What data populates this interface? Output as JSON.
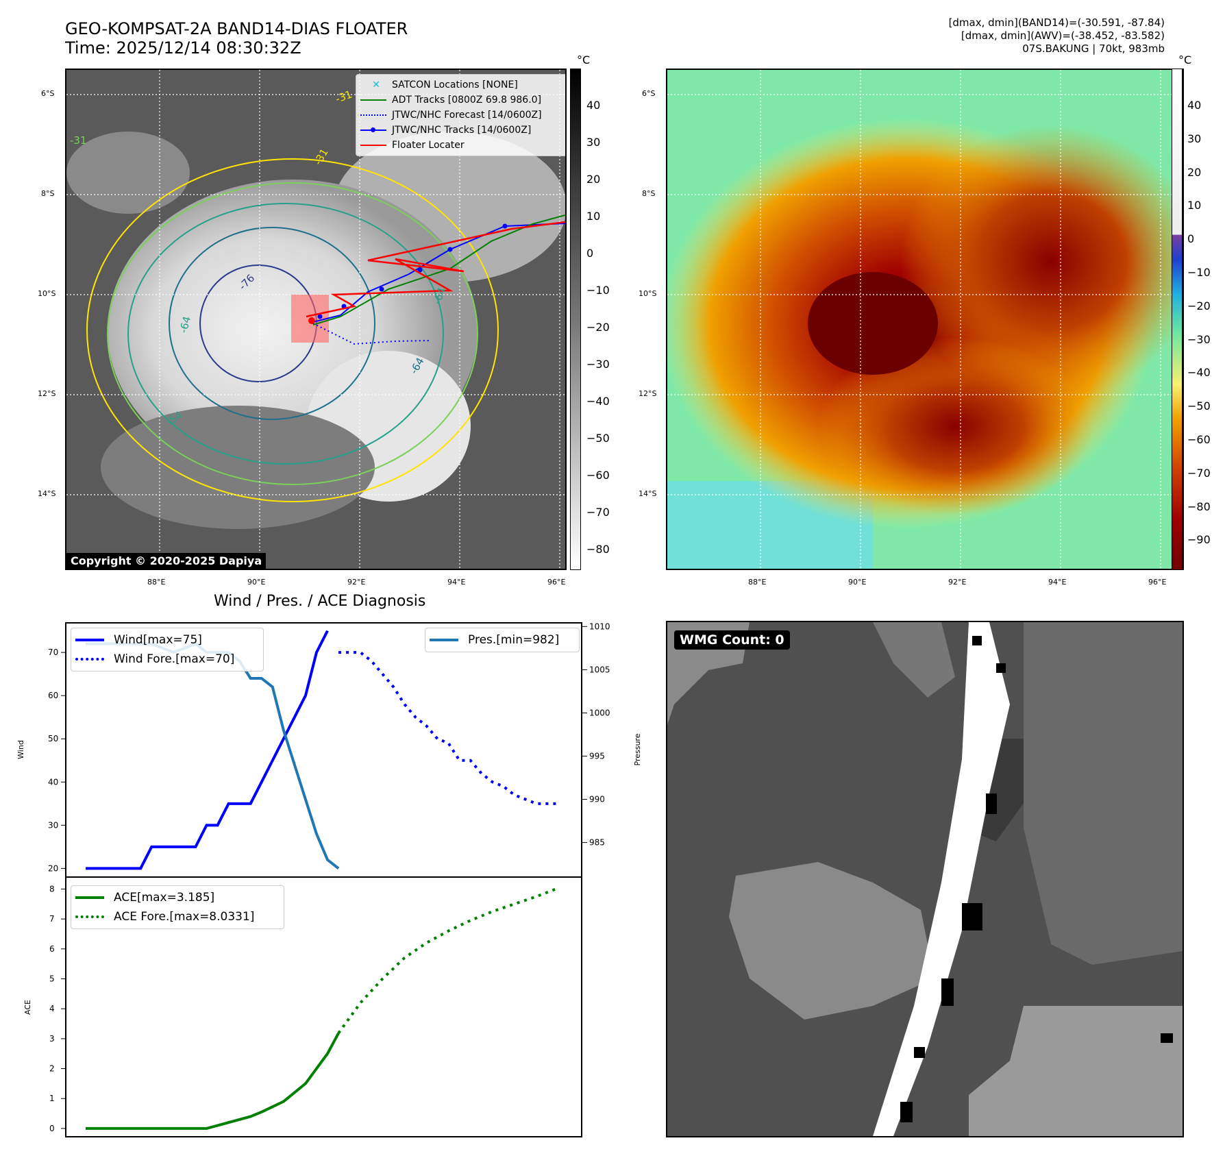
{
  "header": {
    "title_line1": "GEO-KOMPSAT-2A BAND14-DIAS FLOATER",
    "title_line2": "Time: 2025/12/14 08:30:32Z",
    "info_line1": "[dmax, dmin](BAND14)=(-30.591, -87.84)",
    "info_line2": "[dmax, dmin](AWV)=(-38.452, -83.582)",
    "info_line3": "07S.BAKUNG | 70kt, 983mb"
  },
  "map": {
    "lat_labels": [
      "6°S",
      "8°S",
      "10°S",
      "12°S",
      "14°S"
    ],
    "lon_labels": [
      "88°E",
      "90°E",
      "92°E",
      "94°E",
      "96°E"
    ],
    "copyright": "Copyright © 2020-2025 Dapiya",
    "contour_labels": [
      "-31",
      "-31",
      "-64",
      "-76",
      "-54",
      "-64",
      "-31",
      "-64"
    ],
    "legend": [
      {
        "label": "SATCON Locations [NONE]",
        "color": "#17becf",
        "style": "marker-x"
      },
      {
        "label": "ADT Tracks [0800Z 69.8 986.0]",
        "color": "#008000",
        "style": "solid"
      },
      {
        "label": "JTWC/NHC Forecast [14/0600Z]",
        "color": "#0000ff",
        "style": "dotted"
      },
      {
        "label": "JTWC/NHC Tracks [14/0600Z]",
        "color": "#0000ff",
        "style": "solid-marker"
      },
      {
        "label": "Floater Locater",
        "color": "#ff0000",
        "style": "solid"
      }
    ]
  },
  "colorbar_left": {
    "unit": "°C",
    "ticks": [
      "40",
      "30",
      "20",
      "10",
      "0",
      "−10",
      "−20",
      "−30",
      "−40",
      "−50",
      "−60",
      "−70",
      "−80"
    ]
  },
  "colorbar_right": {
    "unit": "°C",
    "ticks": [
      "40",
      "30",
      "20",
      "10",
      "0",
      "−10",
      "−20",
      "−30",
      "−40",
      "−50",
      "−60",
      "−70",
      "−80",
      "−90"
    ]
  },
  "diagnosis": {
    "title": "Wind / Pres. / ACE Diagnosis",
    "wmg_count": "WMG Count: 0"
  },
  "chart_data": [
    {
      "type": "line",
      "ylabel": "Wind",
      "y2label": "Pressure",
      "ylim": [
        18,
        77
      ],
      "y2lim": [
        981,
        1010.5
      ],
      "yticks": [
        20,
        30,
        40,
        50,
        60,
        70
      ],
      "y2ticks": [
        985,
        990,
        995,
        1000,
        1005,
        1010
      ],
      "legend_left": [
        "Wind[max=75]",
        "Wind Fore.[max=70]"
      ],
      "legend_right": [
        "Pres.[min=982]"
      ],
      "series": [
        {
          "name": "Wind[max=75]",
          "axis": "left",
          "color": "#0000ff",
          "style": "solid",
          "x": [
            0,
            1,
            2,
            3,
            4,
            5,
            6,
            7,
            8,
            9,
            10,
            11,
            12,
            13,
            14,
            15,
            16,
            17,
            18,
            19,
            20,
            21,
            22
          ],
          "values": [
            20,
            20,
            20,
            20,
            20,
            20,
            25,
            25,
            25,
            25,
            25,
            30,
            30,
            35,
            35,
            35,
            40,
            45,
            50,
            55,
            60,
            70,
            75
          ]
        },
        {
          "name": "Wind Fore.[max=70]",
          "axis": "left",
          "color": "#0000ff",
          "style": "dotted",
          "x": [
            23,
            24,
            25,
            26,
            27,
            28,
            29,
            30,
            31,
            32,
            33,
            34,
            35,
            36,
            37,
            38,
            39,
            40,
            41,
            42,
            43
          ],
          "values": [
            70,
            70,
            70,
            68,
            65,
            62,
            58,
            55,
            53,
            50,
            49,
            45,
            45,
            42,
            40,
            39,
            37,
            36,
            35,
            35,
            35
          ]
        },
        {
          "name": "Pres.[min=982]",
          "axis": "right",
          "color": "#1f77b4",
          "style": "solid",
          "x": [
            0,
            2,
            4,
            6,
            8,
            10,
            11,
            12,
            13,
            14,
            15,
            16,
            17,
            18,
            19,
            20,
            21,
            22,
            23
          ],
          "values": [
            1008,
            1008,
            1008,
            1008,
            1007,
            1008,
            1007,
            1007,
            1007,
            1006,
            1004,
            1004,
            1003,
            998,
            994,
            990,
            986,
            983,
            982
          ]
        }
      ]
    },
    {
      "type": "line",
      "ylabel": "ACE",
      "ylim": [
        -0.3,
        8.4
      ],
      "yticks": [
        0,
        1,
        2,
        3,
        4,
        5,
        6,
        7,
        8
      ],
      "series": [
        {
          "name": "ACE[max=3.185]",
          "color": "#008000",
          "style": "solid",
          "x": [
            0,
            4,
            8,
            11,
            13,
            15,
            16,
            18,
            20,
            22,
            23
          ],
          "values": [
            0,
            0,
            0,
            0,
            0.2,
            0.4,
            0.55,
            0.9,
            1.5,
            2.5,
            3.185
          ]
        },
        {
          "name": "ACE Fore.[max=8.0331]",
          "color": "#008000",
          "style": "dotted",
          "x": [
            23,
            25,
            27,
            29,
            31,
            33,
            35,
            37,
            39,
            41,
            43
          ],
          "values": [
            3.185,
            4.2,
            5.0,
            5.7,
            6.2,
            6.6,
            6.95,
            7.25,
            7.5,
            7.75,
            8.0331
          ]
        }
      ],
      "x_range": [
        0,
        43
      ]
    }
  ]
}
